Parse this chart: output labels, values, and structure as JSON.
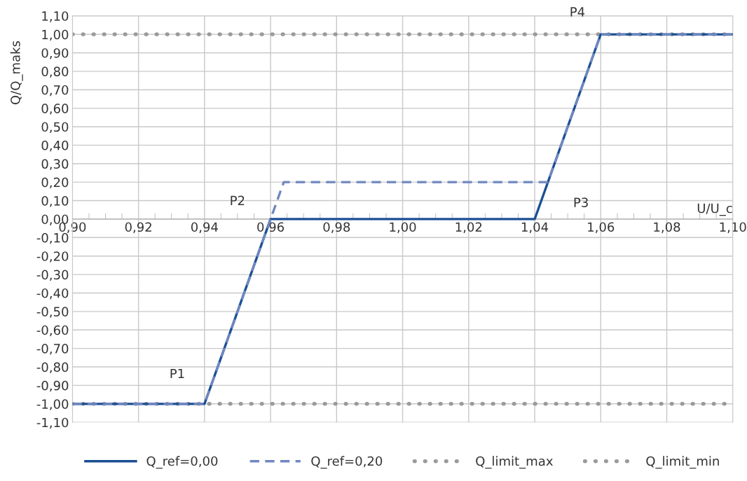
{
  "chart_data": {
    "type": "line",
    "xlabel": "U/U_c",
    "ylabel": "Q/Q_maks",
    "xlim": [
      0.9,
      1.1
    ],
    "ylim": [
      -1.1,
      1.1
    ],
    "xticks": [
      {
        "value": 0.9,
        "label": "0,90"
      },
      {
        "value": 0.905,
        "label": null
      },
      {
        "value": 0.91,
        "label": null
      },
      {
        "value": 0.915,
        "label": null
      },
      {
        "value": 0.92,
        "label": "0,92"
      },
      {
        "value": 0.925,
        "label": null
      },
      {
        "value": 0.93,
        "label": null
      },
      {
        "value": 0.935,
        "label": null
      },
      {
        "value": 0.94,
        "label": "0,94"
      },
      {
        "value": 0.945,
        "label": null
      },
      {
        "value": 0.95,
        "label": null
      },
      {
        "value": 0.955,
        "label": null
      },
      {
        "value": 0.96,
        "label": "0,96"
      },
      {
        "value": 0.965,
        "label": null
      },
      {
        "value": 0.97,
        "label": null
      },
      {
        "value": 0.975,
        "label": null
      },
      {
        "value": 0.98,
        "label": "0,98"
      },
      {
        "value": 0.985,
        "label": null
      },
      {
        "value": 0.99,
        "label": null
      },
      {
        "value": 0.995,
        "label": null
      },
      {
        "value": 1.0,
        "label": "1,00"
      },
      {
        "value": 1.005,
        "label": null
      },
      {
        "value": 1.01,
        "label": null
      },
      {
        "value": 1.015,
        "label": null
      },
      {
        "value": 1.02,
        "label": "1,02"
      },
      {
        "value": 1.025,
        "label": null
      },
      {
        "value": 1.03,
        "label": null
      },
      {
        "value": 1.035,
        "label": null
      },
      {
        "value": 1.04,
        "label": "1,04"
      },
      {
        "value": 1.045,
        "label": null
      },
      {
        "value": 1.05,
        "label": null
      },
      {
        "value": 1.055,
        "label": null
      },
      {
        "value": 1.06,
        "label": "1,06"
      },
      {
        "value": 1.065,
        "label": null
      },
      {
        "value": 1.07,
        "label": null
      },
      {
        "value": 1.075,
        "label": null
      },
      {
        "value": 1.08,
        "label": "1,08"
      },
      {
        "value": 1.085,
        "label": null
      },
      {
        "value": 1.09,
        "label": null
      },
      {
        "value": 1.095,
        "label": null
      },
      {
        "value": 1.1,
        "label": "1,10"
      }
    ],
    "yticks": [
      {
        "value": -1.1,
        "label": "-1,10"
      },
      {
        "value": -1.0,
        "label": "-1,00"
      },
      {
        "value": -0.9,
        "label": "-0,90"
      },
      {
        "value": -0.8,
        "label": "-0,80"
      },
      {
        "value": -0.7,
        "label": "-0,70"
      },
      {
        "value": -0.6,
        "label": "-0,60"
      },
      {
        "value": -0.5,
        "label": "-0,50"
      },
      {
        "value": -0.4,
        "label": "-0,40"
      },
      {
        "value": -0.3,
        "label": "-0,30"
      },
      {
        "value": -0.2,
        "label": "-0,20"
      },
      {
        "value": -0.1,
        "label": "-0,10"
      },
      {
        "value": 0.0,
        "label": "0,00"
      },
      {
        "value": 0.1,
        "label": "0,10"
      },
      {
        "value": 0.2,
        "label": "0,20"
      },
      {
        "value": 0.3,
        "label": "0,30"
      },
      {
        "value": 0.4,
        "label": "0,40"
      },
      {
        "value": 0.5,
        "label": "0,50"
      },
      {
        "value": 0.6,
        "label": "0,60"
      },
      {
        "value": 0.7,
        "label": "0,70"
      },
      {
        "value": 0.8,
        "label": "0,80"
      },
      {
        "value": 0.9,
        "label": "0,90"
      },
      {
        "value": 1.0,
        "label": "1,00"
      },
      {
        "value": 1.1,
        "label": "1,10"
      }
    ],
    "grid": true,
    "legend": "bottom",
    "marker": "none",
    "series": [
      {
        "name": "Q_ref=0,00",
        "color": "#1b4f93",
        "line_style": "solid",
        "x": [
          0.9,
          0.94,
          0.96,
          1.04,
          1.06,
          1.1
        ],
        "values": [
          -1.0,
          -1.0,
          0.0,
          0.0,
          1.0,
          1.0
        ]
      },
      {
        "name": "Q_ref=0,20",
        "color": "#7088c0",
        "line_style": "dashed",
        "x": [
          0.9,
          0.94,
          0.964,
          1.044,
          1.06,
          1.1
        ],
        "values": [
          -1.0,
          -1.0,
          0.2,
          0.2,
          1.0,
          1.0
        ]
      },
      {
        "name": "Q_limit_max",
        "color": "#9a9a9a",
        "line_style": "dotted",
        "x": [
          0.9,
          1.1
        ],
        "values": [
          1.0,
          1.0
        ]
      },
      {
        "name": "Q_limit_min",
        "color": "#9a9a9a",
        "line_style": "dotted",
        "x": [
          0.9,
          1.1
        ],
        "values": [
          -1.0,
          -1.0
        ]
      }
    ],
    "annotations": [
      {
        "text": "P1",
        "x": 0.94,
        "y": -1.0
      },
      {
        "text": "P2",
        "x": 0.96,
        "y": 0.0
      },
      {
        "text": "P3",
        "x": 1.044,
        "y": 0.2
      },
      {
        "text": "P4",
        "x": 1.06,
        "y": 1.0
      }
    ]
  }
}
